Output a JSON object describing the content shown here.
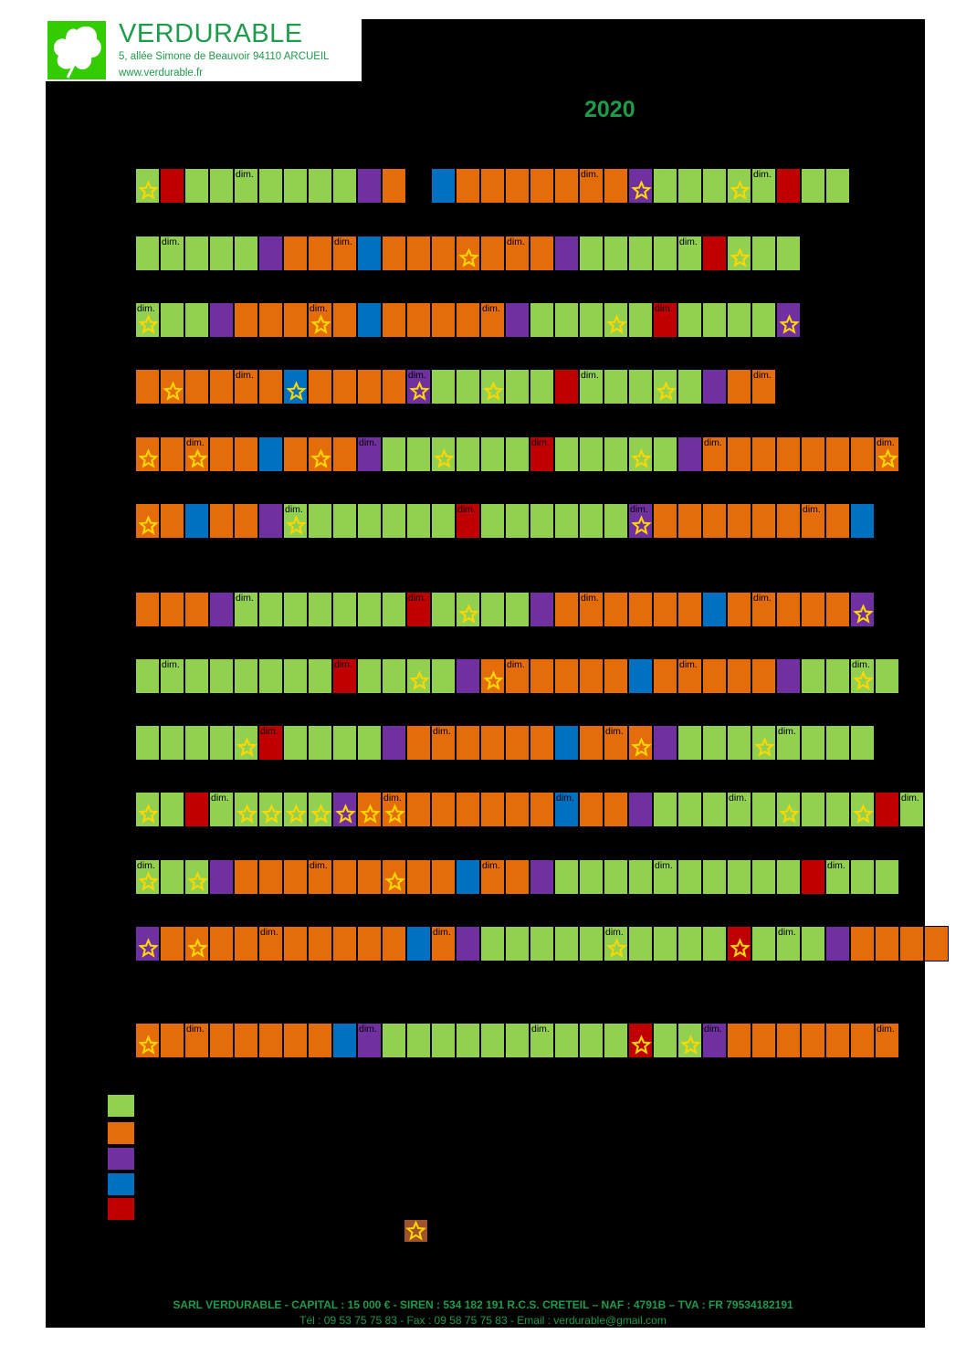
{
  "company": {
    "name": "VERDURABLE",
    "address": "5, allée Simone de Beauvoir 94110 ARCUEIL",
    "website": "www.verdurable.fr"
  },
  "year": "2020",
  "colors": {
    "G": "#92d050",
    "O": "#e46c0a",
    "P": "#7030a0",
    "B": "#0070c0",
    "R": "#c00000"
  },
  "sunday_label": "dim.",
  "rows": [
    {
      "days": "GRGGGGGGGPODBOOOOOOOPGGGGGRGG",
      "stars": [
        0,
        20,
        24
      ],
      "dims": [
        4,
        11,
        18,
        25
      ]
    },
    {
      "days": "GGGGGPOOOBOOOOOOOPGGGGGRGGG",
      "stars": [
        13,
        24
      ],
      "dims": [
        1,
        8,
        15,
        22
      ]
    },
    {
      "days": "GGGPOOOOOBOOOOOPGGGGGRGGGGP",
      "stars": [
        0,
        7,
        19,
        26
      ],
      "dims": [
        0,
        7,
        14,
        21,
        28
      ]
    },
    {
      "days": "OOOOOOBOOOOPGGGGGRGGGGGPOO",
      "stars": [
        1,
        6,
        11,
        14,
        21,
        28
      ],
      "dims": [
        4,
        11,
        18,
        25
      ]
    },
    {
      "days": "OOOOOBOOOPGGGGGGRGGGGGPOOOOOOOO",
      "stars": [
        0,
        2,
        7,
        12,
        20,
        30
      ],
      "dims": [
        2,
        9,
        16,
        23,
        30
      ]
    },
    {
      "days": "OOBOOPGGGGGGGRGGGGGGPOOOOOOOOB",
      "stars": [
        0,
        6,
        20
      ],
      "dims": [
        6,
        13,
        20,
        27
      ]
    },
    {
      "days": "OOOPGGGGGGGRGGGGPOOOOOOBOOOOOP",
      "stars": [
        13,
        29
      ],
      "dims": [
        4,
        11,
        18,
        25
      ]
    },
    {
      "days": "GGGGGGGGRGGGGPOOOOOOBOOOOOPGGGG",
      "stars": [
        11,
        14,
        29
      ],
      "dims": [
        1,
        8,
        15,
        22,
        29
      ]
    },
    {
      "days": "GGGGGRGGGGPOOOOOOBOOOPGGGGGGGG",
      "stars": [
        4,
        20,
        25
      ],
      "dims": [
        5,
        12,
        19,
        26
      ]
    },
    {
      "days": "GGRGGGGGPOOOOOOOOBOOPGGGGGGGGGRG",
      "stars": [
        0,
        4,
        5,
        6,
        7,
        8,
        9,
        10,
        26,
        29
      ],
      "dims": [
        3,
        10,
        17,
        24,
        31
      ]
    },
    {
      "days": "GGGPOOOOOOOOOBOOPGGGGGGGGGGRGGG",
      "stars": [
        0,
        2,
        10
      ],
      "dims": [
        0,
        7,
        14,
        21,
        28
      ]
    },
    {
      "days": "POOOOOOOOOOBOPGGGGGGGGGGRGGGPOOOO",
      "stars": [
        0,
        2,
        19,
        24
      ],
      "dims": [
        5,
        12,
        19,
        26
      ]
    },
    {
      "days": "OOOOOOOOBPGGGGGGGGGGRGGPOOOOOOO",
      "stars": [
        0,
        20,
        22
      ],
      "dims": [
        2,
        9,
        16,
        23,
        30
      ]
    }
  ],
  "legend": [
    "G",
    "O",
    "P",
    "B",
    "R"
  ],
  "footer": {
    "line1": "SARL VERDURABLE - CAPITAL : 15 000 € - SIREN : 534 182 191 R.C.S. CRETEIL – NAF : 4791B – TVA : FR 79534182191",
    "line2": "Tél : 09 53 75 75 83  -  Fax : 09 58 75 75 83  -  Email : verdurable@gmail.com"
  }
}
